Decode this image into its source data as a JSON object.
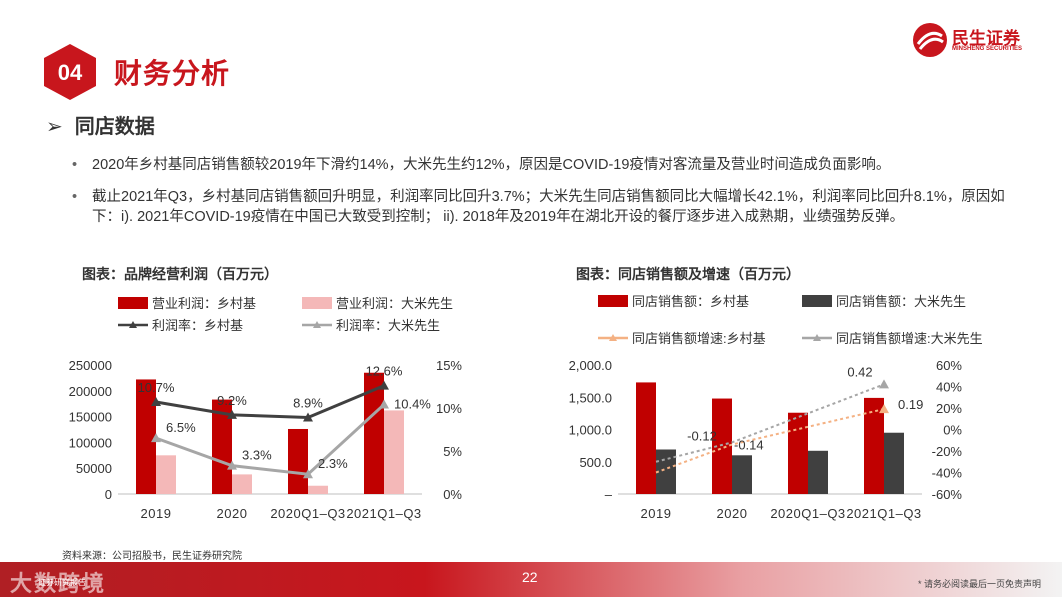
{
  "header": {
    "section_number": "04",
    "section_title": "财务分析",
    "logo_text": "民生证券",
    "logo_subtext": "MINSHENG SECURITIES"
  },
  "subtitle": "同店数据",
  "bullets": [
    "2020年乡村基同店销售额较2019年下滑约14%，大米先生约12%，原因是COVID-19疫情对客流量及营业时间造成负面影响。",
    "截止2021年Q3，乡村基同店销售额回升明显，利润率同比回升3.7%；大米先生同店销售额同比大幅增长42.1%，利润率同比回升8.1%，原因如下：i). 2021年COVID-19疫情在中国已大致受到控制； ii). 2018年及2019年在湖北开设的餐厅逐步进入成熟期，业绩强势反弹。"
  ],
  "chart_data": [
    {
      "type": "bar",
      "caption": "图表：品牌经营利润（百万元）",
      "categories": [
        "2019",
        "2020",
        "2020Q1–Q3",
        "2021Q1–Q3"
      ],
      "series": [
        {
          "name": "营业利润：乡村基",
          "kind": "bar",
          "axis": "left",
          "color": "#c00000",
          "values": [
            222000,
            183000,
            126000,
            235000
          ]
        },
        {
          "name": "营业利润：大米先生",
          "kind": "bar",
          "axis": "left",
          "color": "#f4b8b8",
          "values": [
            75000,
            38000,
            16000,
            162000
          ]
        },
        {
          "name": "利润率：乡村基",
          "kind": "line",
          "axis": "right",
          "color": "#404040",
          "values": [
            10.7,
            9.2,
            8.9,
            12.6
          ],
          "labels": [
            "10.7%",
            "9.2%",
            "8.9%",
            "12.6%"
          ]
        },
        {
          "name": "利润率：大米先生",
          "kind": "line",
          "axis": "right",
          "color": "#a6a6a6",
          "values": [
            6.5,
            3.3,
            2.3,
            10.4
          ],
          "labels": [
            "6.5%",
            "3.3%",
            "2.3%",
            "10.4%"
          ]
        }
      ],
      "y_left": {
        "min": 0,
        "max": 250000,
        "ticks": [
          "0",
          "50000",
          "100000",
          "150000",
          "200000",
          "250000"
        ]
      },
      "y_right": {
        "min": 0,
        "max": 15,
        "ticks": [
          "0%",
          "5%",
          "10%",
          "15%"
        ]
      }
    },
    {
      "type": "bar",
      "caption": "图表：同店销售额及增速（百万元）",
      "categories": [
        "2019",
        "2020",
        "2020Q1–Q3",
        "2021Q1–Q3"
      ],
      "series": [
        {
          "name": "同店销售额：乡村基",
          "kind": "bar",
          "axis": "left",
          "color": "#c00000",
          "values": [
            1730,
            1480,
            1260,
            1490
          ]
        },
        {
          "name": "同店销售额：大米先生",
          "kind": "bar",
          "axis": "left",
          "color": "#404040",
          "values": [
            690,
            600,
            670,
            950
          ]
        },
        {
          "name": "同店销售额增速:乡村基",
          "kind": "trend",
          "axis": "right",
          "color": "#f4b183",
          "values": [
            -0.4,
            -0.14,
            null,
            0.19
          ],
          "labels": [
            "",
            "",
            "",
            "0.19"
          ]
        },
        {
          "name": "同店销售额增速:大米先生",
          "kind": "trend",
          "axis": "right",
          "color": "#a6a6a6",
          "values": [
            -0.3,
            -0.12,
            null,
            0.42
          ],
          "labels": [
            "",
            "-0.12",
            "",
            "0.42"
          ]
        }
      ],
      "extra_labels": [
        "-0.14"
      ],
      "y_left": {
        "min": 0,
        "max": 2000,
        "ticks": [
          "–",
          "500.0",
          "1,000.0",
          "1,500.0",
          "2,000.0"
        ]
      },
      "y_right": {
        "min": -60,
        "max": 60,
        "ticks": [
          "-60%",
          "-40%",
          "-20%",
          "0%",
          "20%",
          "40%",
          "60%"
        ]
      }
    }
  ],
  "source": "资料来源：公司招股书，民生证券研究院",
  "footer": {
    "page_number": "22",
    "disclaimer": "* 请务必阅读最后一页免责声明",
    "watermark": "大数跨境",
    "watermark_small": "证券研究报告"
  },
  "colors": {
    "accent": "#c8161d"
  }
}
